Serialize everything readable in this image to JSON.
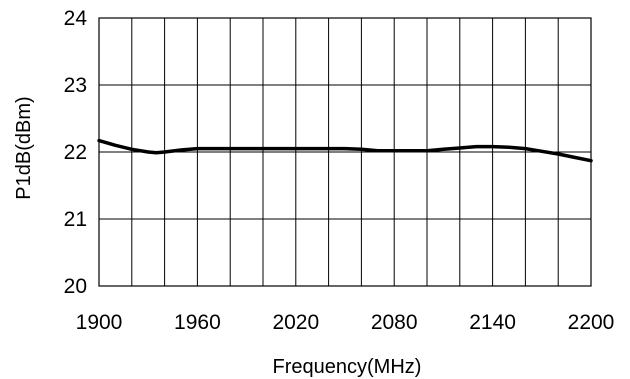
{
  "chart_data": {
    "type": "line",
    "title": "",
    "xlabel": "Frequency(MHz)",
    "ylabel": "P1dB(dBm)",
    "xlim": [
      1900,
      2200
    ],
    "ylim": [
      20,
      24
    ],
    "x_ticks": [
      1900,
      1960,
      2020,
      2080,
      2140,
      2200
    ],
    "y_ticks": [
      20,
      21,
      22,
      23,
      24
    ],
    "x_grid_step": 20,
    "y_grid_step": 1,
    "grid": true,
    "legend": "none",
    "line_color": "#000000",
    "series": [
      {
        "x": [
          1900,
          1910,
          1920,
          1930,
          1935,
          1940,
          1950,
          1960,
          1980,
          2000,
          2020,
          2040,
          2050,
          2060,
          2070,
          2080,
          2090,
          2100,
          2110,
          2120,
          2130,
          2140,
          2150,
          2160,
          2170,
          2180,
          2190,
          2200
        ],
        "y": [
          22.17,
          22.1,
          22.04,
          22.0,
          21.99,
          22.0,
          22.03,
          22.05,
          22.05,
          22.05,
          22.05,
          22.05,
          22.05,
          22.04,
          22.02,
          22.02,
          22.02,
          22.02,
          22.04,
          22.06,
          22.08,
          22.08,
          22.07,
          22.05,
          22.01,
          21.97,
          21.92,
          21.87
        ]
      }
    ]
  }
}
